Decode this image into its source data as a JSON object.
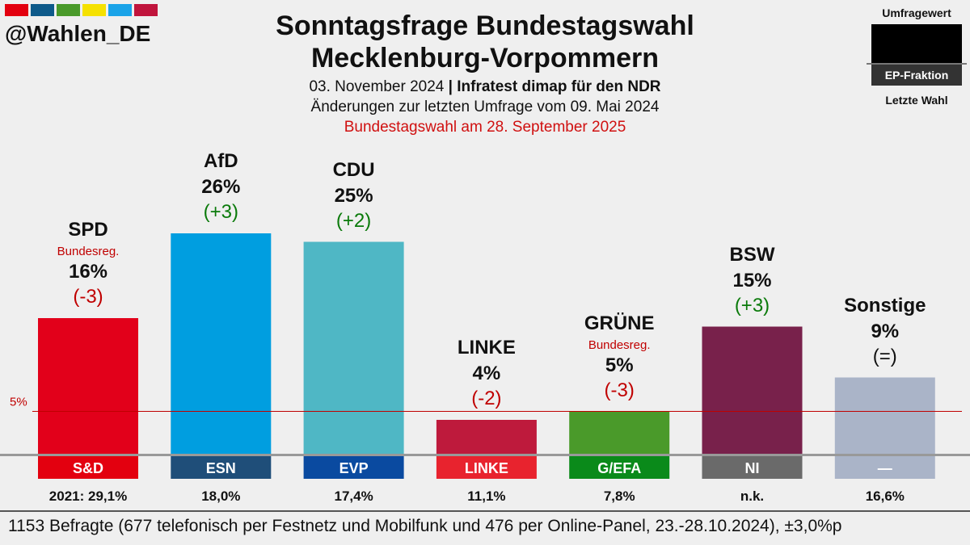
{
  "brand": {
    "handle": "@Wahlen_DE",
    "strip_colors": [
      "#e3000f",
      "#0e5a8a",
      "#4a9a2a",
      "#f5e100",
      "#1aa3e8",
      "#c0143c"
    ]
  },
  "header": {
    "title_line1": "Sonntagsfrage Bundestagswahl",
    "title_line2": "Mecklenburg-Vorpommern",
    "date": "03. November 2024",
    "separator": "|",
    "source": "Infratest dimap für den NDR",
    "changes_note": "Änderungen zur letzten Umfrage vom 09. Mai 2024",
    "election_note": "Bundestagswahl am 28. September 2025"
  },
  "legend": {
    "top": "Umfragewert",
    "middle": "EP-Fraktion",
    "bottom": "Letzte Wahl"
  },
  "chart_data": {
    "type": "bar",
    "unit": "%",
    "ylim": [
      0,
      30
    ],
    "threshold": {
      "value": 5,
      "label": "5%",
      "color": "#c00000"
    },
    "categories": [
      "SPD",
      "AfD",
      "CDU",
      "LINKE",
      "GRÜNE",
      "BSW",
      "Sonstige"
    ],
    "values": [
      16,
      26,
      25,
      4,
      5,
      15,
      9
    ],
    "value_labels": [
      "16%",
      "26%",
      "25%",
      "4%",
      "5%",
      "15%",
      "9%"
    ],
    "changes": [
      "-3",
      "+3",
      "+2",
      "-2",
      "-3",
      "+3",
      "="
    ],
    "change_colors": [
      "#c00000",
      "#0a7a0a",
      "#0a7a0a",
      "#c00000",
      "#c00000",
      "#0a7a0a",
      "#111111"
    ],
    "notes": [
      "Bundesreg.",
      "",
      "",
      "",
      "Bundesreg.",
      "",
      ""
    ],
    "colors": [
      "#e2001a",
      "#009ee0",
      "#4fb7c5",
      "#be1a3c",
      "#4a9a2a",
      "#78214b",
      "#aab4c8"
    ],
    "ep_groups": [
      "S&D",
      "ESN",
      "EVP",
      "LINKE",
      "G/EFA",
      "NI",
      "—"
    ],
    "ep_colors": [
      "#e3000f",
      "#1f4e79",
      "#0a4aa0",
      "#e8232e",
      "#0a8a1a",
      "#6a6a6a",
      "#aab4c8"
    ],
    "last_election": [
      "2021: 29,1%",
      "18,0%",
      "17,4%",
      "11,1%",
      "7,8%",
      "n.k.",
      "16,6%"
    ]
  },
  "footer": {
    "text": "1153 Befragte (677 telefonisch per Festnetz und Mobilfunk und 476 per Online-Panel, 23.-28.10.2024), ±3,0%p"
  }
}
